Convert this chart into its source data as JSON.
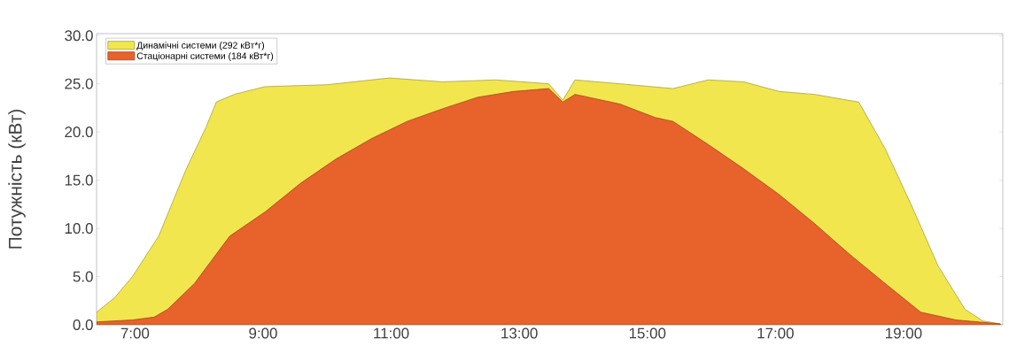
{
  "chart_data": {
    "type": "area",
    "ylabel": "Потужність (кВт)",
    "xlim": [
      6.4,
      20.55
    ],
    "ylim": [
      0,
      30.2
    ],
    "xticks": [
      {
        "value": 7,
        "label": "7:00"
      },
      {
        "value": 9,
        "label": "9:00"
      },
      {
        "value": 11,
        "label": "11:00"
      },
      {
        "value": 13,
        "label": "13:00"
      },
      {
        "value": 15,
        "label": "15:00"
      },
      {
        "value": 17,
        "label": "17:00"
      },
      {
        "value": 19,
        "label": "19:00"
      }
    ],
    "yticks": [
      {
        "value": 0,
        "label": "0.0"
      },
      {
        "value": 5,
        "label": "5.0"
      },
      {
        "value": 10,
        "label": "10.0"
      },
      {
        "value": 15,
        "label": "15.0"
      },
      {
        "value": 20,
        "label": "20.0"
      },
      {
        "value": 25,
        "label": "25.0"
      },
      {
        "value": 30,
        "label": "30.0"
      }
    ],
    "legend": "top left",
    "series": [
      {
        "name": "Динамічні системи (292 кВт*г)",
        "color": "#f2e64e",
        "x": [
          6.4,
          6.68,
          6.96,
          7.37,
          7.79,
          8.11,
          8.27,
          8.55,
          9.03,
          10.0,
          10.97,
          11.8,
          12.63,
          13.46,
          13.68,
          13.87,
          14.57,
          15.4,
          15.95,
          16.5,
          17.06,
          17.61,
          18.3,
          18.71,
          19.13,
          19.54,
          19.96,
          20.24,
          20.51
        ],
        "values": [
          1.3,
          2.8,
          5.0,
          9.2,
          16.0,
          20.5,
          23.1,
          23.9,
          24.7,
          24.9,
          25.6,
          25.2,
          25.4,
          25.0,
          23.3,
          25.4,
          25.0,
          24.5,
          25.4,
          25.2,
          24.2,
          23.9,
          23.1,
          18.3,
          12.3,
          6.1,
          1.6,
          0.4,
          0.1
        ]
      },
      {
        "name": "Стаціонарні системи (184 кВт*г)",
        "color": "#e8622c",
        "x": [
          6.4,
          6.96,
          7.3,
          7.51,
          7.93,
          8.48,
          9.03,
          9.59,
          10.14,
          10.69,
          11.25,
          11.8,
          12.35,
          12.91,
          13.46,
          13.68,
          13.87,
          14.57,
          15.12,
          15.4,
          15.95,
          16.5,
          17.06,
          17.61,
          18.16,
          18.71,
          19.27,
          19.82,
          20.51
        ],
        "values": [
          0.3,
          0.5,
          0.8,
          1.6,
          4.3,
          9.2,
          11.7,
          14.7,
          17.2,
          19.3,
          21.1,
          22.4,
          23.6,
          24.2,
          24.5,
          23.1,
          23.9,
          22.9,
          21.5,
          21.1,
          18.7,
          16.2,
          13.5,
          10.5,
          7.3,
          4.3,
          1.3,
          0.5,
          0.1
        ]
      }
    ]
  }
}
